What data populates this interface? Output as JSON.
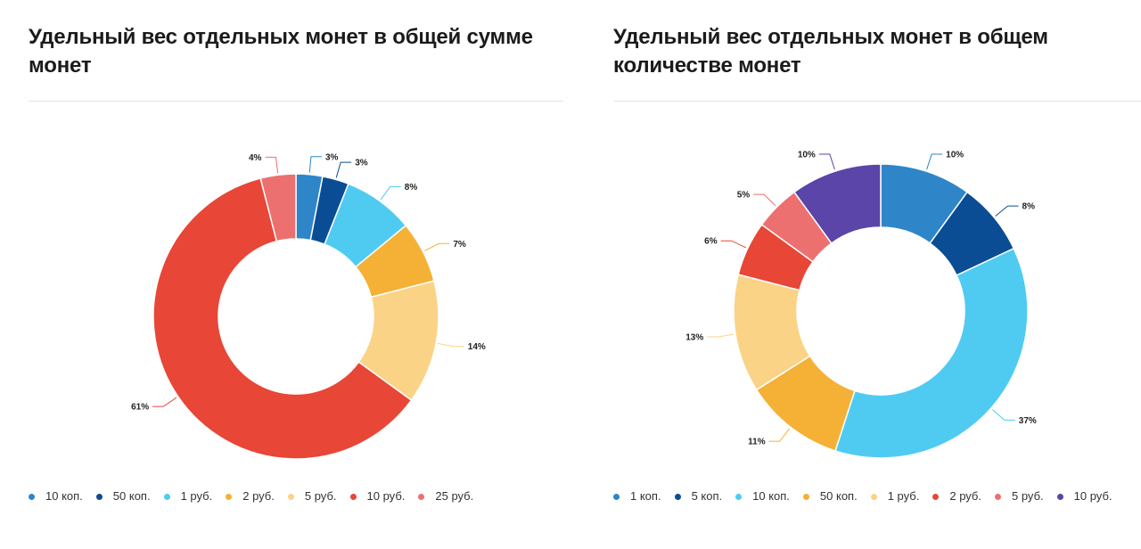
{
  "chart_data": [
    {
      "type": "pie",
      "donut": true,
      "title": "Удельный вес отдельных монет в общей сумме монет",
      "categories": [
        "10 коп.",
        "50 коп.",
        "1 руб.",
        "2 руб.",
        "5 руб.",
        "10 руб.",
        "25 руб."
      ],
      "values": [
        3,
        3,
        8,
        7,
        14,
        61,
        4
      ],
      "labels": [
        "3%",
        "3%",
        "8%",
        "7%",
        "14%",
        "61%",
        "4%"
      ],
      "colors": [
        "#2E86C9",
        "#0B4D95",
        "#4FCBF2",
        "#F4B136",
        "#FAD387",
        "#E84637",
        "#ED7070"
      ],
      "unit": "%",
      "legend_position": "bottom"
    },
    {
      "type": "pie",
      "donut": true,
      "title": "Удельный вес отдельных монет в общем количестве монет",
      "categories": [
        "1 коп.",
        "5 коп.",
        "10 коп.",
        "50 коп.",
        "1 руб.",
        "2 руб.",
        "5 руб.",
        "10 руб."
      ],
      "values": [
        10,
        8,
        37,
        11,
        13,
        6,
        5,
        10
      ],
      "labels": [
        "10%",
        "8%",
        "37%",
        "11%",
        "13%",
        "6%",
        "5%",
        "10%"
      ],
      "colors": [
        "#2E86C9",
        "#0B4D95",
        "#4FCBF2",
        "#F4B136",
        "#FAD387",
        "#E84637",
        "#ED7070",
        "#5B45A8"
      ],
      "unit": "%",
      "legend_position": "bottom"
    }
  ]
}
